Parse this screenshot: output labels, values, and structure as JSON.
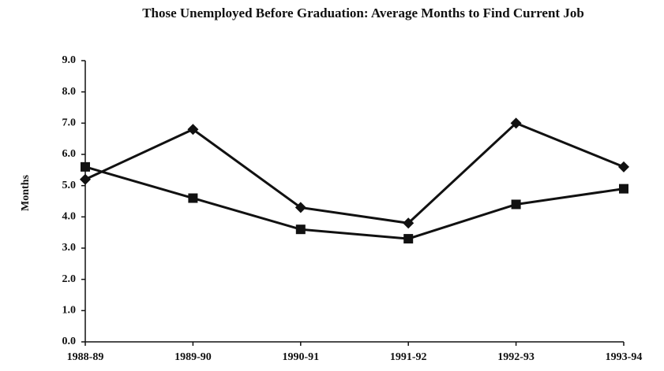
{
  "chart_data": {
    "type": "line",
    "title": "Those Unemployed Before Graduation: Average Months to Find Current Job",
    "y_label": "Months",
    "categories": [
      "1988-89",
      "1989-90",
      "1990-91",
      "1991-92",
      "1992-93",
      "1993-94"
    ],
    "series": [
      {
        "color": "#111111",
        "marker": "diamond",
        "values": [
          5.2,
          6.8,
          4.3,
          3.8,
          7.0,
          5.6
        ]
      },
      {
        "color": "#111111",
        "marker": "square",
        "values": [
          5.6,
          4.6,
          3.6,
          3.3,
          4.4,
          4.9
        ]
      }
    ],
    "ylim": [
      0,
      9
    ],
    "yticks": [
      {
        "value": 0,
        "label": "0.0"
      },
      {
        "value": 1,
        "label": "1.0"
      },
      {
        "value": 2,
        "label": "2.0"
      },
      {
        "value": 3,
        "label": "3.0"
      },
      {
        "value": 4,
        "label": "4.0"
      },
      {
        "value": 5,
        "label": "5.0"
      },
      {
        "value": 6,
        "label": "6.0"
      },
      {
        "value": 7,
        "label": "7.0"
      },
      {
        "value": 8,
        "label": "8.0"
      },
      {
        "value": 9,
        "label": "9.0"
      }
    ],
    "grid": false
  }
}
